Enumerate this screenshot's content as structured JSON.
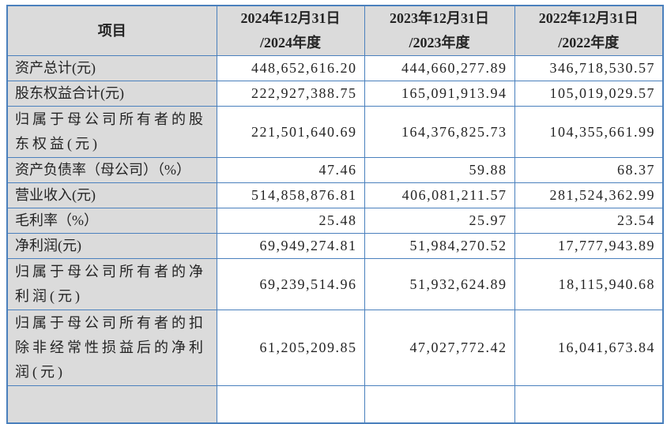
{
  "colors": {
    "table_border": "#4a80bd",
    "header_background": "#dbdbdb",
    "label_column_background": "#dbdbdb",
    "text": "#242424"
  },
  "table": {
    "header": {
      "item": "项目",
      "period_2024": "2024年12月31日\n/2024年度",
      "period_2023": "2023年12月31日\n/2023年度",
      "period_2022": "2022年12月31日\n/2022年度"
    },
    "rows": [
      {
        "label": "资产总计(元)",
        "values": [
          "448,652,616.20",
          "444,660,277.89",
          "346,718,530.57"
        ]
      },
      {
        "label": "股东权益合计(元)",
        "values": [
          "222,927,388.75",
          "165,091,913.94",
          "105,019,029.57"
        ]
      },
      {
        "label": "归属于母公司所有者的股\n东权益(元)",
        "values": [
          "221,501,640.69",
          "164,376,825.73",
          "104,355,661.99"
        ]
      },
      {
        "label": "资产负债率（母公司）（%）",
        "values": [
          "47.46",
          "59.88",
          "68.37"
        ]
      },
      {
        "label": "营业收入(元)",
        "values": [
          "514,858,876.81",
          "406,081,211.57",
          "281,524,362.99"
        ]
      },
      {
        "label": "毛利率（%）",
        "values": [
          "25.48",
          "25.97",
          "23.54"
        ]
      },
      {
        "label": "净利润(元)",
        "values": [
          "69,949,274.81",
          "51,984,270.52",
          "17,777,943.89"
        ]
      },
      {
        "label": "归属于母公司所有者的净\n利润(元)",
        "values": [
          "69,239,514.96",
          "51,932,624.89",
          "18,115,940.68"
        ]
      },
      {
        "label": "归属于母公司所有者的扣\n除非经常性损益后的净利\n润(元)",
        "values": [
          "61,205,209.85",
          "47,027,772.42",
          "16,041,673.84"
        ]
      },
      {
        "label": "",
        "values": [
          "",
          "",
          ""
        ],
        "partial": true
      }
    ]
  }
}
